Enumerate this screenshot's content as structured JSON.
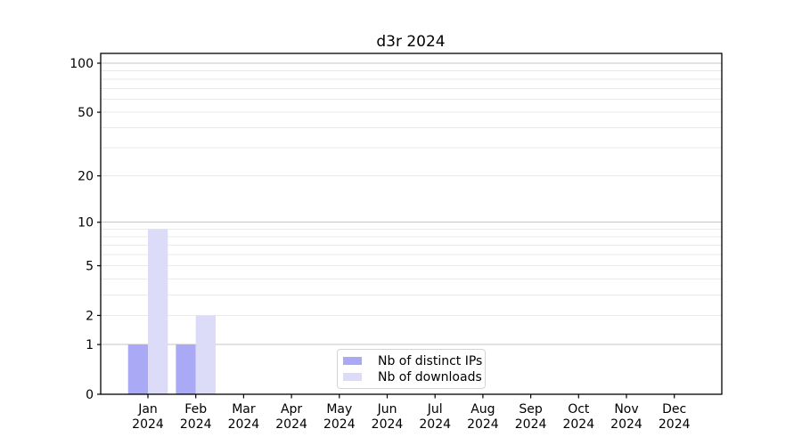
{
  "chart_data": {
    "type": "bar",
    "title": "d3r 2024",
    "months": [
      "Jan",
      "Feb",
      "Mar",
      "Apr",
      "May",
      "Jun",
      "Jul",
      "Aug",
      "Sep",
      "Oct",
      "Nov",
      "Dec"
    ],
    "year": "2024",
    "series": [
      {
        "name": "Nb of distinct IPs",
        "color": "#a9a9f6",
        "values": [
          1,
          1,
          0,
          0,
          0,
          0,
          0,
          0,
          0,
          0,
          0,
          0
        ]
      },
      {
        "name": "Nb of downloads",
        "color": "#dcdcf8",
        "values": [
          9,
          2,
          0,
          0,
          0,
          0,
          0,
          0,
          0,
          0,
          0,
          0
        ]
      }
    ],
    "y_axis": {
      "scale": "log1p",
      "ylim": [
        0,
        100
      ],
      "major_ticks": [
        0,
        1,
        2,
        5,
        10,
        20,
        50,
        100
      ],
      "major_gridlines": [
        1,
        10,
        100
      ],
      "minor_gridlines": [
        2,
        3,
        4,
        5,
        6,
        7,
        8,
        9,
        20,
        30,
        40,
        50,
        60,
        70,
        80,
        90
      ]
    },
    "grid": {
      "major_color": "#c6c6c6",
      "minor_color": "#eaeaea"
    },
    "axis_color": "#000000",
    "legend": {
      "position": "bottom-center"
    }
  }
}
